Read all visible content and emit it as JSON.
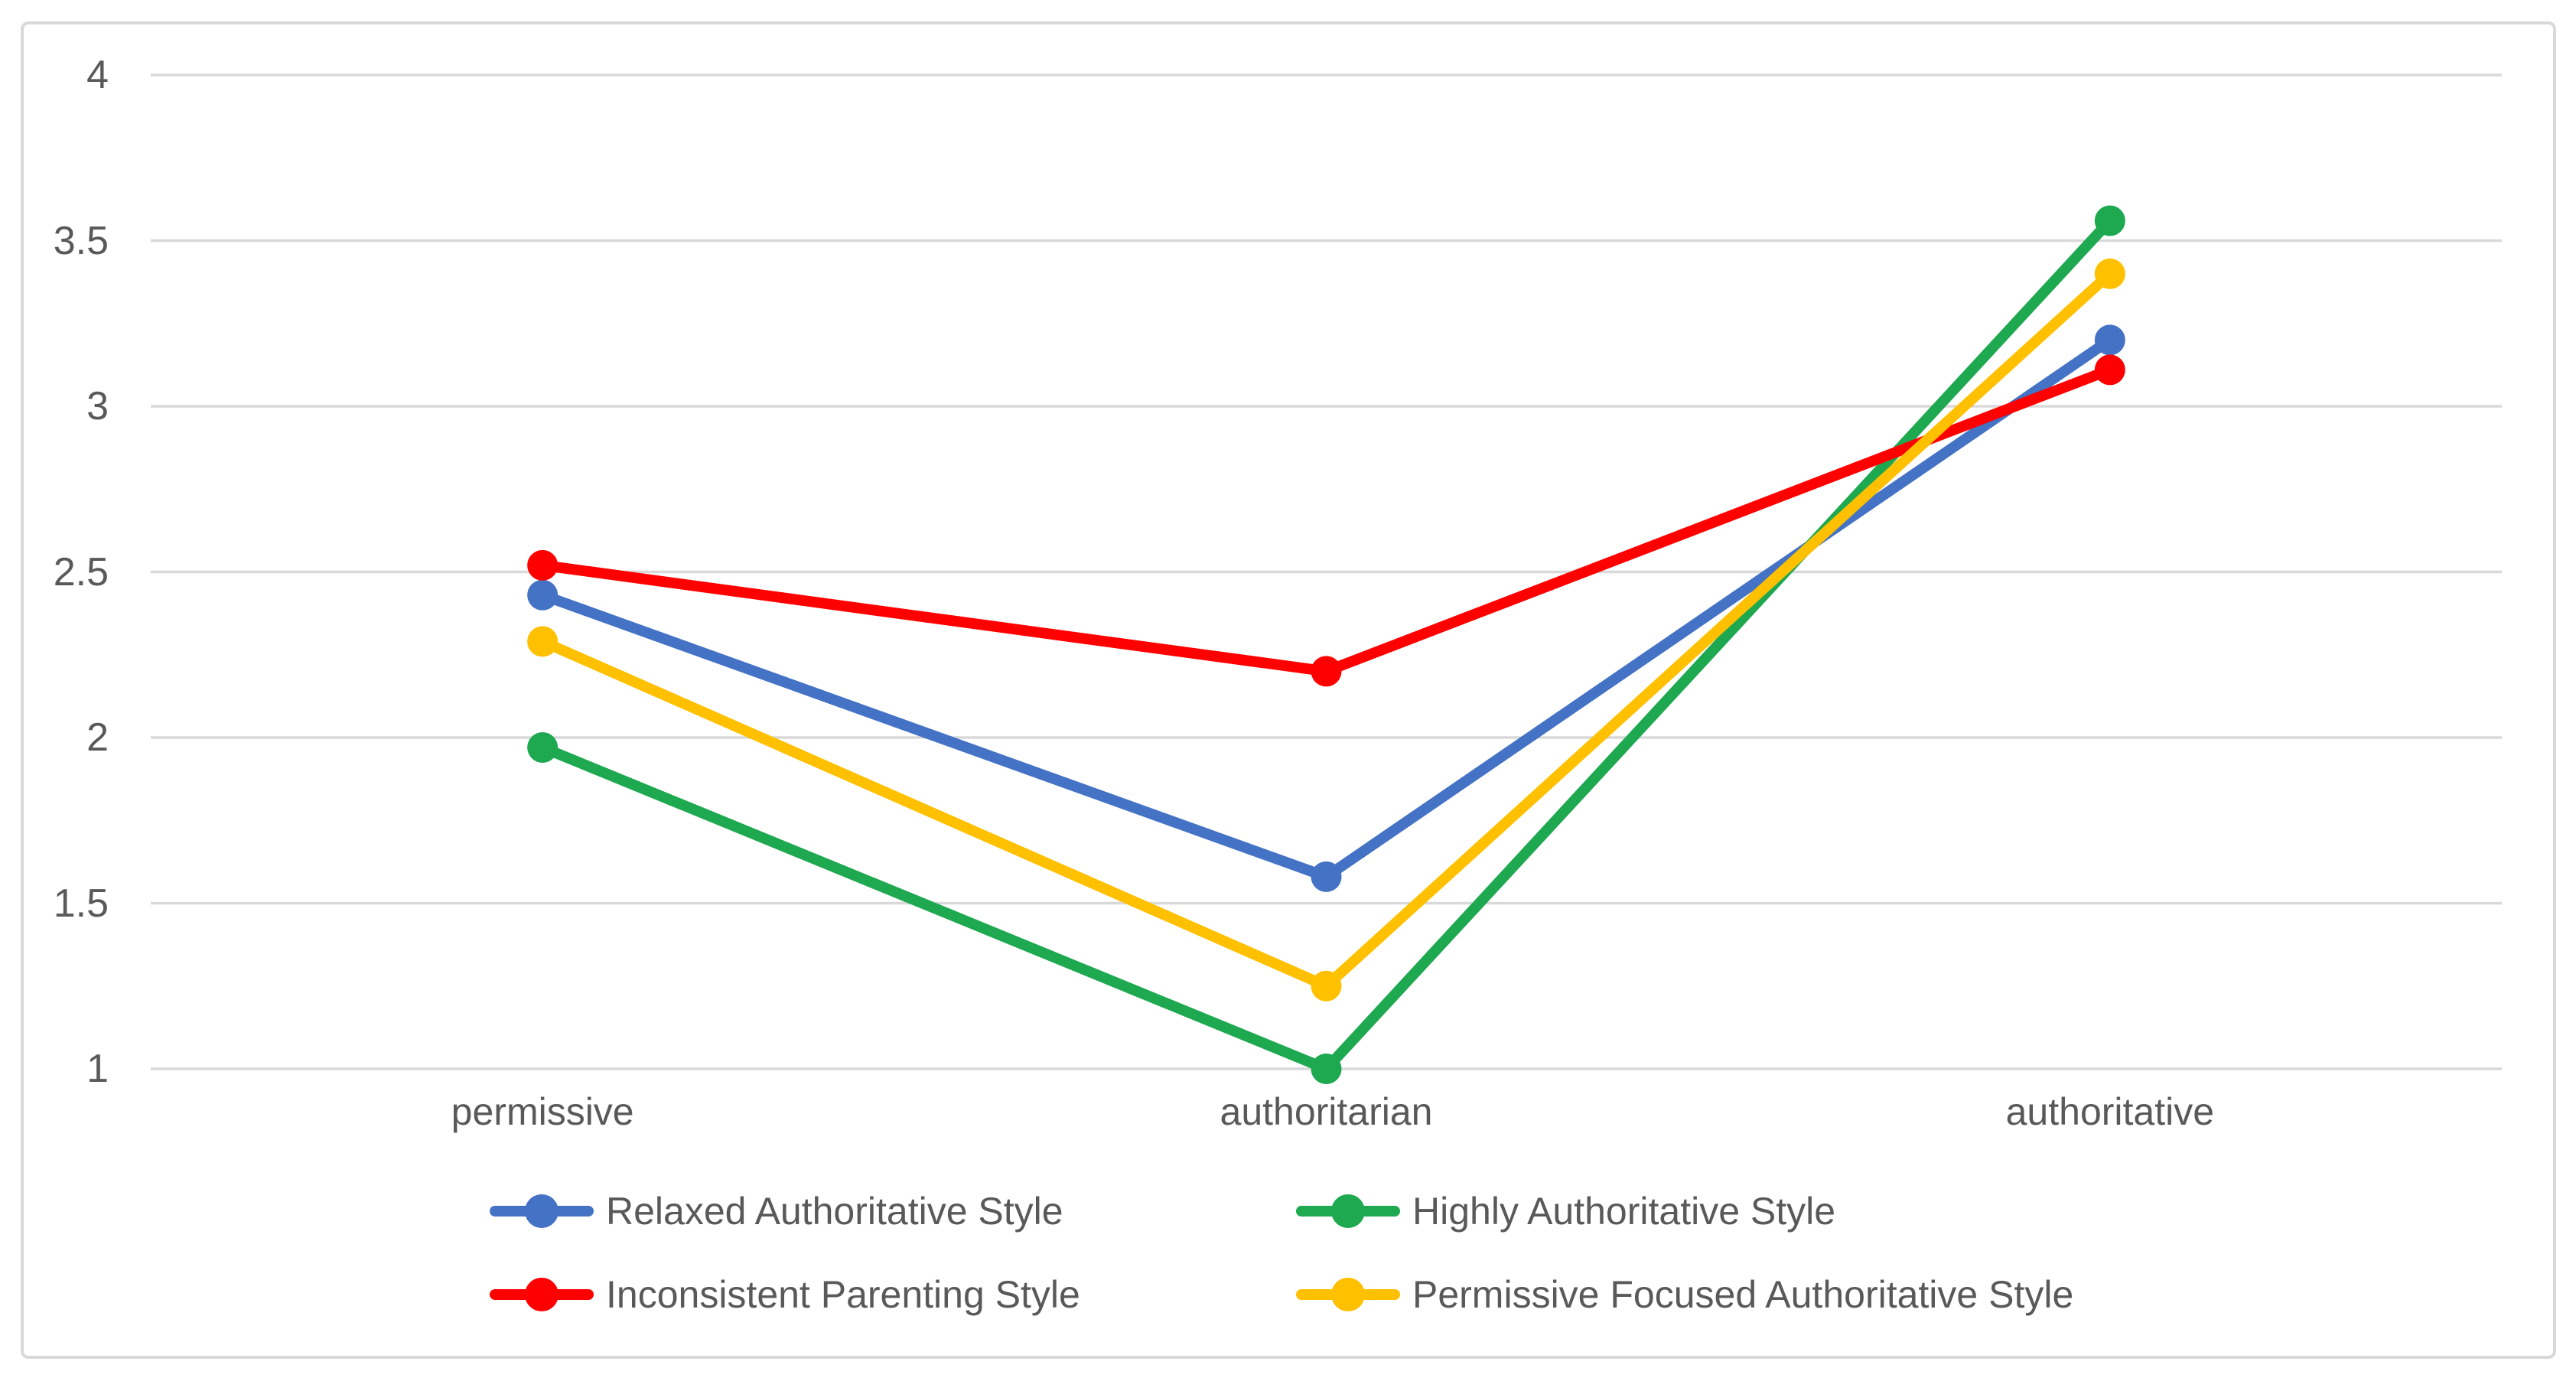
{
  "chart_data": {
    "type": "line",
    "title": "",
    "xlabel": "",
    "ylabel": "",
    "categories": [
      "permissive",
      "authoritarian",
      "authoritative"
    ],
    "series": [
      {
        "name": "Relaxed Authoritative Style",
        "color": "#4472C4",
        "values": [
          2.43,
          1.58,
          3.2
        ]
      },
      {
        "name": "Highly Authoritative Style",
        "color": "#1EA850",
        "values": [
          1.97,
          1.0,
          3.56
        ]
      },
      {
        "name": "Inconsistent Parenting Style",
        "color": "#FF0000",
        "values": [
          2.52,
          2.2,
          3.11
        ]
      },
      {
        "name": "Permissive Focused Authoritative Style",
        "color": "#FFC000",
        "values": [
          2.29,
          1.25,
          3.4
        ]
      }
    ],
    "ylim": [
      1,
      4
    ],
    "y_ticks": [
      4,
      3.5,
      3,
      2.5,
      2,
      1.5,
      1
    ],
    "y_tick_labels": [
      "4",
      "3.5",
      "3",
      "2.5",
      "2",
      "1.5",
      "1"
    ],
    "grid": "horizontal",
    "legend_position": "bottom",
    "marker": "circle"
  },
  "styles": {
    "grid_color": "#D9D9D9",
    "frame_border_color": "#D9D9D9",
    "text_color": "#595959",
    "background_color": "#FFFFFF"
  }
}
